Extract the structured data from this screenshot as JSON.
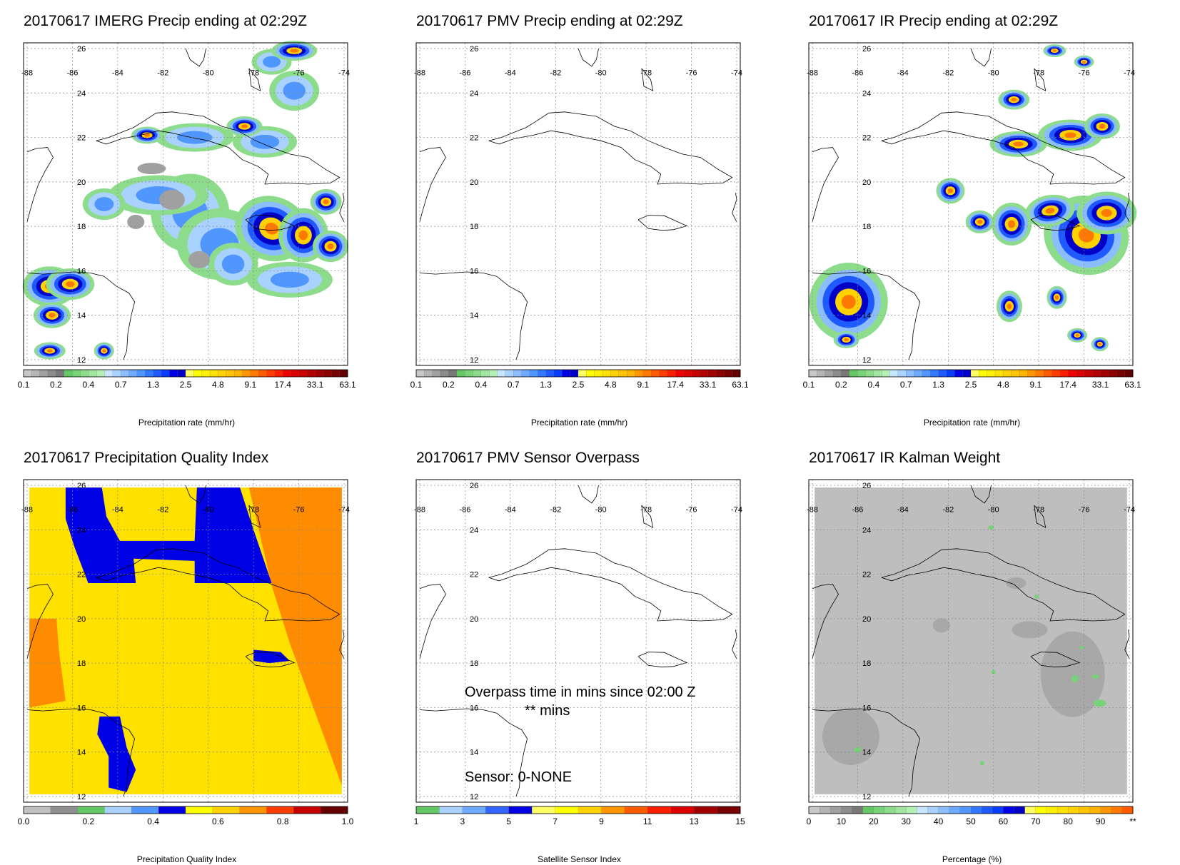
{
  "grid": {
    "lon_labels": [
      "-88",
      "-86",
      "-84",
      "-82",
      "-80",
      "-78",
      "-76",
      "-74"
    ],
    "lat_labels": [
      "26",
      "24",
      "22",
      "20",
      "18",
      "16",
      "14",
      "12"
    ]
  },
  "panels": [
    {
      "title": "20170617 IMERG Precip ending at 02:29Z",
      "field": "precip",
      "colorbar": {
        "label": "Precipitation rate (mm/hr)",
        "ticks": [
          "0.1",
          "0.2",
          "0.4",
          "0.7",
          "1.3",
          "2.5",
          "4.8",
          "9.1",
          "17.4",
          "33.1",
          "63.1"
        ],
        "colors": [
          "#c8c8c8",
          "#b4b4b4",
          "#a0a0a0",
          "#8c8c8c",
          "#787878",
          "#64c864",
          "#78d278",
          "#8cdc8c",
          "#a0e6a0",
          "#b4f0b4",
          "#c8e6ff",
          "#aad2ff",
          "#8cbeff",
          "#6eaaff",
          "#5096ff",
          "#3278ff",
          "#1e5aff",
          "#0a3cff",
          "#0000e6",
          "#0000c8",
          "#ffff64",
          "#ffff00",
          "#fff000",
          "#ffe100",
          "#ffd200",
          "#ffc300",
          "#ffb400",
          "#ff9600",
          "#ff7800",
          "#ff5a00",
          "#ff3c00",
          "#ff1e00",
          "#f00000",
          "#dc0000",
          "#c80000",
          "#b40000",
          "#a00000",
          "#8c0000",
          "#780000",
          "#640000"
        ]
      }
    },
    {
      "title": "20170617 PMV Precip ending at 02:29Z",
      "field": "none",
      "colorbar": {
        "label": "Precipitation rate (mm/hr)",
        "ticks": [
          "0.1",
          "0.2",
          "0.4",
          "0.7",
          "1.3",
          "2.5",
          "4.8",
          "9.1",
          "17.4",
          "33.1",
          "63.1"
        ],
        "colors": [
          "#c8c8c8",
          "#b4b4b4",
          "#a0a0a0",
          "#8c8c8c",
          "#787878",
          "#64c864",
          "#78d278",
          "#8cdc8c",
          "#a0e6a0",
          "#b4f0b4",
          "#c8e6ff",
          "#aad2ff",
          "#8cbeff",
          "#6eaaff",
          "#5096ff",
          "#3278ff",
          "#1e5aff",
          "#0a3cff",
          "#0000e6",
          "#0000c8",
          "#ffff64",
          "#ffff00",
          "#fff000",
          "#ffe100",
          "#ffd200",
          "#ffc300",
          "#ffb400",
          "#ff9600",
          "#ff7800",
          "#ff5a00",
          "#ff3c00",
          "#ff1e00",
          "#f00000",
          "#dc0000",
          "#c80000",
          "#b40000",
          "#a00000",
          "#8c0000",
          "#780000",
          "#640000"
        ]
      }
    },
    {
      "title": "20170617 IR Precip ending at 02:29Z",
      "field": "ir",
      "colorbar": {
        "label": "Precipitation rate (mm/hr)",
        "ticks": [
          "0.1",
          "0.2",
          "0.4",
          "0.7",
          "1.3",
          "2.5",
          "4.8",
          "9.1",
          "17.4",
          "33.1",
          "63.1"
        ],
        "colors": [
          "#c8c8c8",
          "#b4b4b4",
          "#a0a0a0",
          "#8c8c8c",
          "#787878",
          "#64c864",
          "#78d278",
          "#8cdc8c",
          "#a0e6a0",
          "#b4f0b4",
          "#c8e6ff",
          "#aad2ff",
          "#8cbeff",
          "#6eaaff",
          "#5096ff",
          "#3278ff",
          "#1e5aff",
          "#0a3cff",
          "#0000e6",
          "#0000c8",
          "#ffff64",
          "#ffff00",
          "#fff000",
          "#ffe100",
          "#ffd200",
          "#ffc300",
          "#ffb400",
          "#ff9600",
          "#ff7800",
          "#ff5a00",
          "#ff3c00",
          "#ff1e00",
          "#f00000",
          "#dc0000",
          "#c80000",
          "#b40000",
          "#a00000",
          "#8c0000",
          "#780000",
          "#640000"
        ]
      }
    },
    {
      "title": "20170617 Precipitation Quality Index",
      "field": "quality",
      "colorbar": {
        "label": "Precipitation Quality Index",
        "ticks": [
          "0.0",
          "0.2",
          "0.4",
          "0.6",
          "0.8",
          "1.0"
        ],
        "colors": [
          "#c0c0c0",
          "#909090",
          "#64c864",
          "#aad2ff",
          "#5096ff",
          "#0000e6",
          "#ffff00",
          "#ffd200",
          "#ff9600",
          "#ff3c00",
          "#c80000",
          "#640000"
        ]
      }
    },
    {
      "title": "20170617 PMV Sensor Overpass",
      "field": "none",
      "notes": {
        "overpass": "Overpass time in mins since 02:00 Z",
        "mins": "** mins",
        "sensor": "Sensor:   0-NONE"
      },
      "colorbar": {
        "label": "Satellite Sensor Index",
        "ticks": [
          "1",
          "3",
          "5",
          "7",
          "9",
          "11",
          "13",
          "15"
        ],
        "colors": [
          "#64c864",
          "#aad2ff",
          "#6eaaff",
          "#3264ff",
          "#0000e6",
          "#ffff64",
          "#ffff00",
          "#ffd200",
          "#ff9600",
          "#ff5a00",
          "#ff1e00",
          "#dc0000",
          "#a00000",
          "#780000"
        ]
      }
    },
    {
      "title": "20170617 IR Kalman Weight",
      "field": "kalman",
      "colorbar": {
        "label": "Percentage (%)",
        "ticks": [
          "0",
          "10",
          "20",
          "30",
          "40",
          "50",
          "60",
          "70",
          "80",
          "90",
          "**"
        ],
        "colors": [
          "#c8c8c8",
          "#b4b4b4",
          "#a0a0a0",
          "#8c8c8c",
          "#787878",
          "#64c864",
          "#78d278",
          "#8cdc8c",
          "#a0e6a0",
          "#b4f0b4",
          "#c8e6ff",
          "#aad2ff",
          "#8cbeff",
          "#6eaaff",
          "#5096ff",
          "#3278ff",
          "#1e5aff",
          "#0a3cff",
          "#0000e6",
          "#0000c8",
          "#ffff64",
          "#ffff00",
          "#fff000",
          "#ffe100",
          "#ffd200",
          "#ffc300",
          "#ffb400",
          "#ff9600",
          "#ff7800",
          "#ff5a00"
        ]
      }
    }
  ]
}
